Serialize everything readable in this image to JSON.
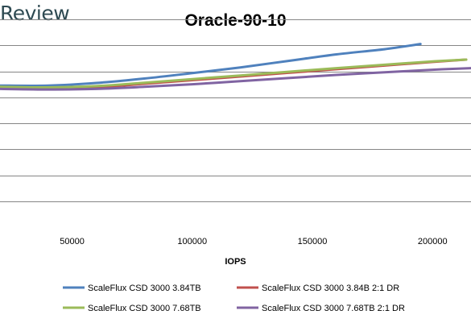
{
  "brand": {
    "text": "Review"
  },
  "chart_data": {
    "type": "line",
    "title": "Oracle-90-10",
    "xlabel": "IOPS",
    "ylabel": "",
    "xlim": [
      20000,
      216000
    ],
    "ylim": [
      0,
      8
    ],
    "x_ticks": [
      50000,
      100000,
      150000,
      200000
    ],
    "x_tick_labels": [
      "50000",
      "100000",
      "150000",
      "200000"
    ],
    "y_grid_values": [
      1,
      2,
      3,
      4,
      5,
      6,
      7,
      8
    ],
    "y_tick_labels_visible": false,
    "grid": true,
    "legend_position": "bottom",
    "series": [
      {
        "name": "ScaleFlux CSD 3000 3.84TB",
        "color": "#4f81bd",
        "x": [
          20000,
          40000,
          60000,
          80000,
          100000,
          120000,
          140000,
          160000,
          180000,
          195000
        ],
        "y": [
          5.45,
          5.45,
          5.55,
          5.72,
          5.93,
          6.15,
          6.4,
          6.65,
          6.85,
          7.05
        ]
      },
      {
        "name": "ScaleFlux CSD 3000 3.84B 2:1 DR",
        "color": "#c0504d",
        "x": [
          20000,
          40000,
          60000,
          80000,
          100000,
          120000,
          140000,
          160000,
          180000,
          200000,
          214000
        ],
        "y": [
          5.35,
          5.33,
          5.38,
          5.52,
          5.66,
          5.8,
          5.94,
          6.08,
          6.22,
          6.36,
          6.45
        ]
      },
      {
        "name": "ScaleFlux CSD 3000 7.68TB",
        "color": "#9bbb59",
        "x": [
          20000,
          40000,
          60000,
          80000,
          100000,
          120000,
          140000,
          160000,
          180000,
          200000,
          214000
        ],
        "y": [
          5.4,
          5.38,
          5.43,
          5.56,
          5.7,
          5.84,
          5.98,
          6.12,
          6.25,
          6.38,
          6.45
        ]
      },
      {
        "name": "ScaleFlux CSD 3000 7.68TB 2:1 DR",
        "color": "#8064a2",
        "x": [
          20000,
          40000,
          60000,
          80000,
          100000,
          120000,
          140000,
          160000,
          180000,
          200000,
          216000
        ],
        "y": [
          5.32,
          5.3,
          5.32,
          5.4,
          5.5,
          5.62,
          5.74,
          5.86,
          5.96,
          6.06,
          6.12
        ]
      }
    ]
  }
}
